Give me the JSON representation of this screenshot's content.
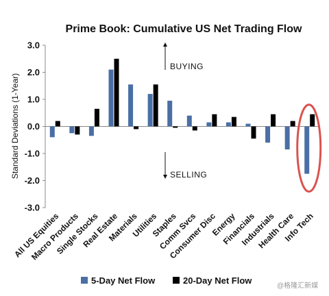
{
  "chart_data": {
    "type": "bar",
    "title": "Prime Book: Cumulative US Net Trading Flow",
    "ylabel": "Standard Deviations (1-Year)",
    "ylim": [
      -3.0,
      3.0
    ],
    "yticks": [
      "3.0",
      "2.0",
      "1.0",
      "0.0",
      "-1.0",
      "-2.0",
      "-3.0"
    ],
    "ytick_values": [
      3,
      2,
      1,
      0,
      -1,
      -2,
      -3
    ],
    "categories": [
      "All US Equities",
      "Macro Products",
      "Single Stocks",
      "Real Estate",
      "Materials",
      "Utilities",
      "Staples",
      "Comm Svcs",
      "Consumer Disc",
      "Energy",
      "Financials",
      "Industrials",
      "Health Care",
      "Info Tech"
    ],
    "series": [
      {
        "name": "5-Day Net Flow",
        "color": "#4a6fa5",
        "values": [
          -0.4,
          -0.25,
          -0.35,
          2.1,
          1.55,
          1.2,
          0.95,
          0.4,
          0.15,
          0.15,
          0.1,
          -0.6,
          -0.85,
          -1.75
        ]
      },
      {
        "name": "20-Day Net Flow",
        "color": "#000000",
        "values": [
          0.2,
          -0.3,
          0.65,
          2.5,
          -0.1,
          1.55,
          -0.05,
          -0.15,
          0.45,
          0.35,
          -0.45,
          0.45,
          0.2,
          0.45
        ]
      }
    ],
    "annotations": {
      "up": "BUYING",
      "down": "SELLING"
    },
    "highlight": {
      "category": "Info Tech",
      "color": "#d9534f"
    },
    "legend_position": "bottom"
  },
  "watermark": "@格隆汇新媒"
}
